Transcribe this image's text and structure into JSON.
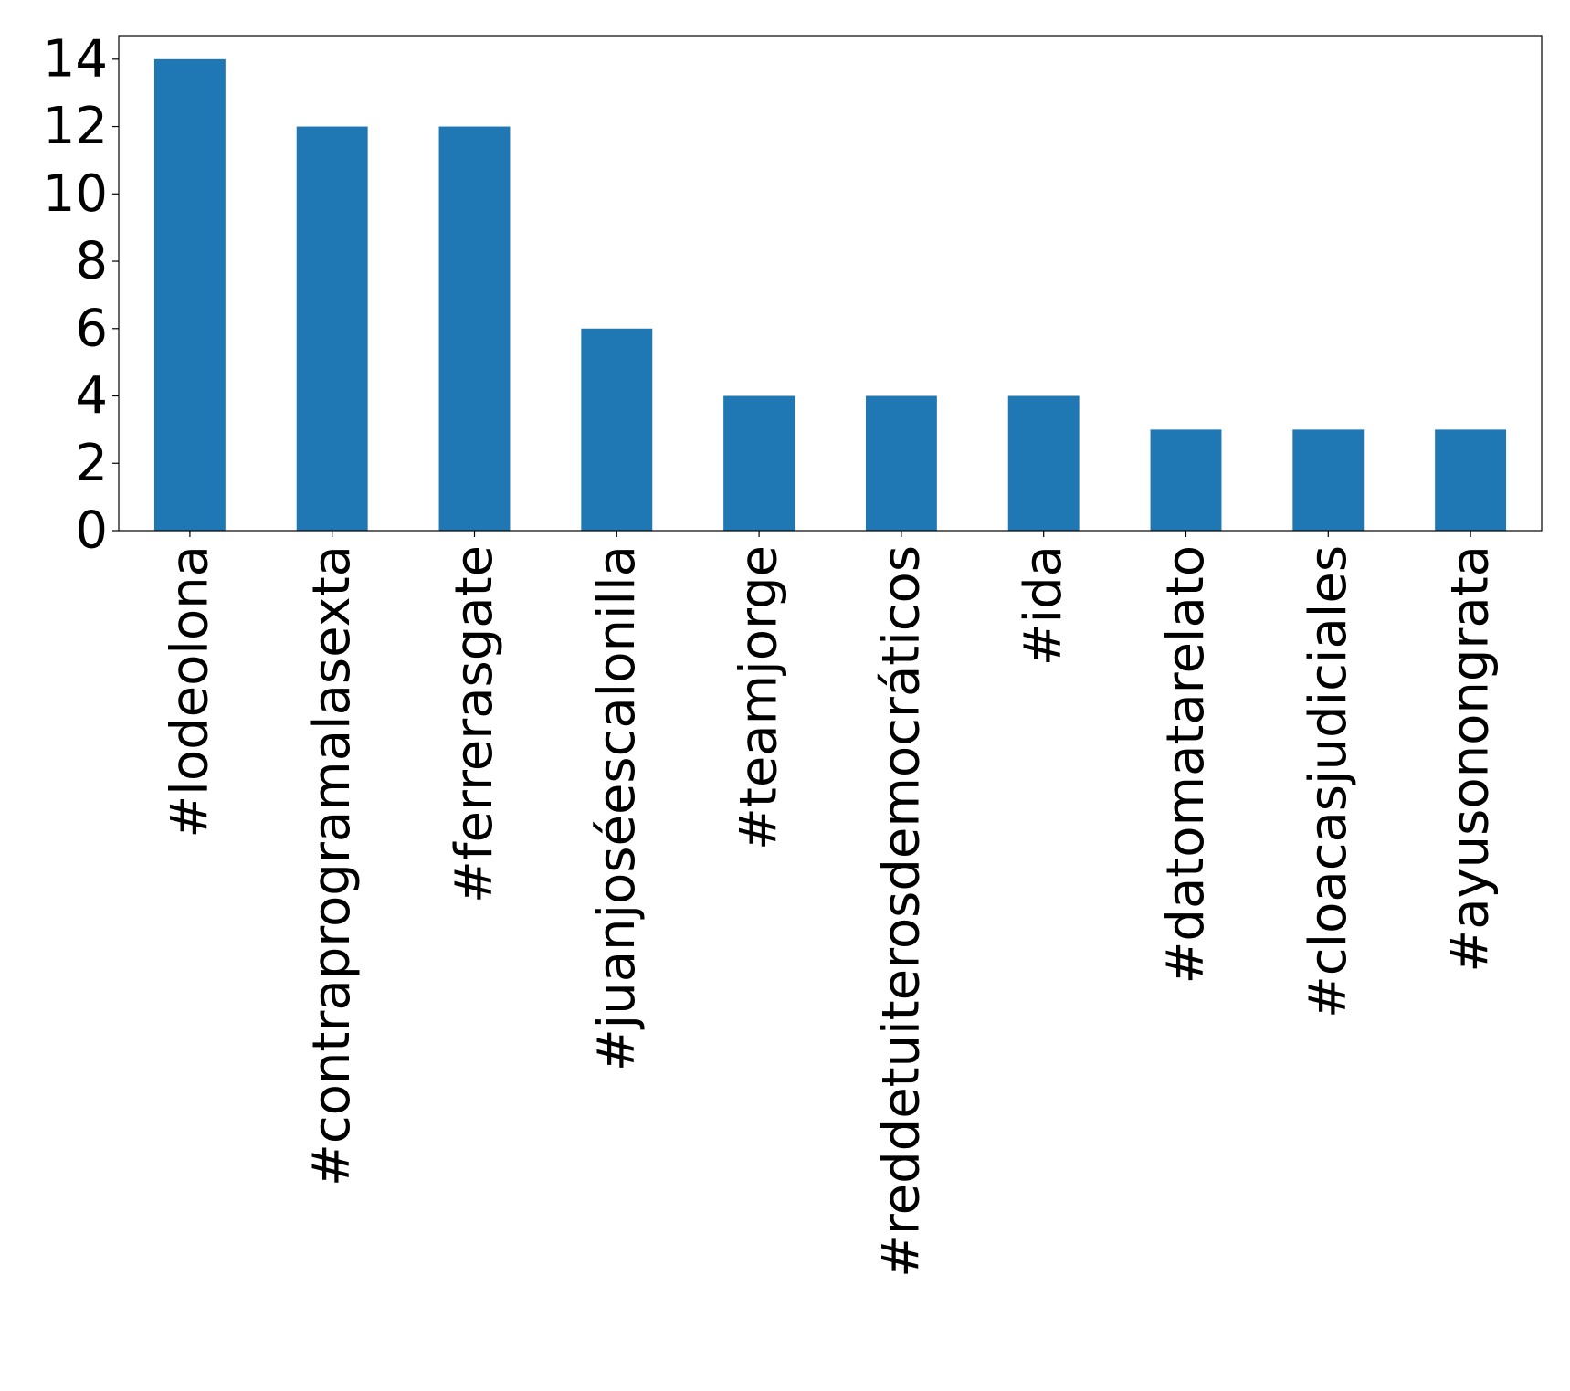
{
  "chart_data": {
    "type": "bar",
    "title": "",
    "xlabel": "",
    "ylabel": "",
    "categories": [
      "#lodeolona",
      "#contraprogramalasexta",
      "#ferrerasgate",
      "#juanjoséescalonilla",
      "#teamjorge",
      "#reddetuiterosdemocráticos",
      "#ida",
      "#datomatarelato",
      "#cloacasjudiciales",
      "#ayusonongrata"
    ],
    "values": [
      14,
      12,
      12,
      6,
      4,
      4,
      4,
      3,
      3,
      3
    ],
    "ylim": [
      0,
      14.7
    ],
    "yticks": [
      "0",
      "2",
      "4",
      "6",
      "8",
      "10",
      "12",
      "14"
    ],
    "bar_color": "#1f77b4",
    "grid": false,
    "legend": "none"
  }
}
